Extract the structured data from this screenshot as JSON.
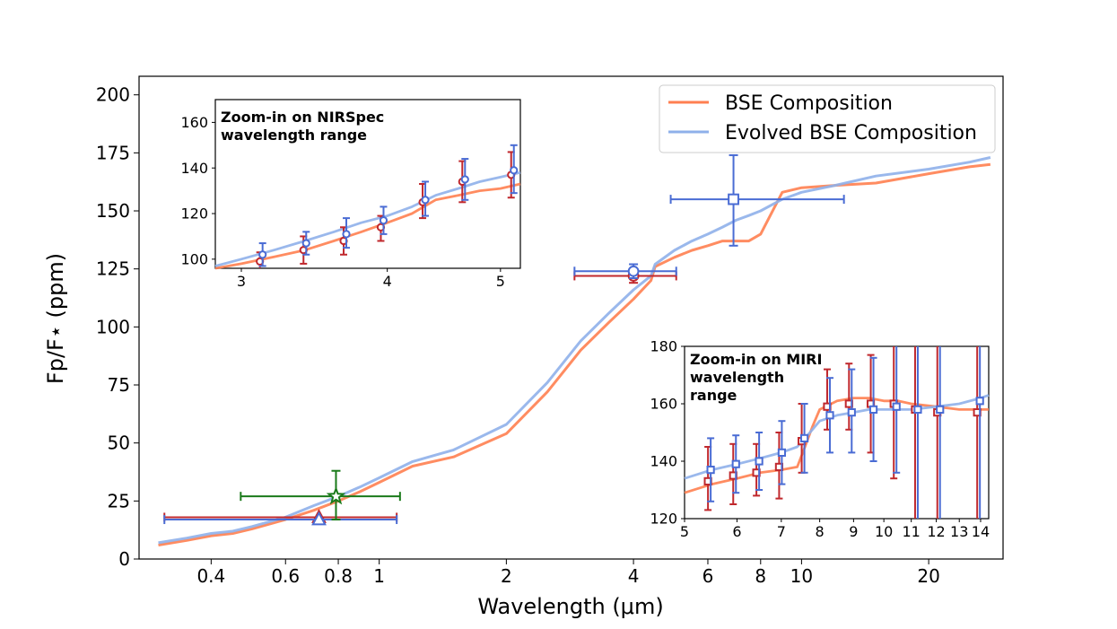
{
  "chart_data": [
    {
      "type": "line",
      "title": "",
      "xlabel": "Wavelength (μm)",
      "ylabel": "Fp/F⋆ (ppm)",
      "xscale": "log",
      "xlim": [
        0.27,
        30
      ],
      "ylim": [
        0,
        208
      ],
      "xticks": [
        0.4,
        0.6,
        0.8,
        1,
        2,
        4,
        6,
        8,
        10,
        20
      ],
      "xtick_labels": [
        "0.4",
        "0.6",
        "0.8",
        "1",
        "2",
        "4",
        "6",
        "8",
        "10",
        "20"
      ],
      "yticks": [
        0,
        25,
        50,
        75,
        100,
        125,
        150,
        175,
        200
      ],
      "ytick_labels": [
        "0",
        "25",
        "50",
        "75",
        "100",
        "125",
        "150",
        "175",
        "200"
      ],
      "legend": {
        "position": "top-right",
        "entries": [
          {
            "label": "BSE Composition",
            "color": "#ff7f50"
          },
          {
            "label": "Evolved BSE Composition",
            "color": "#8fb0ea"
          }
        ]
      },
      "series": [
        {
          "name": "BSE Composition",
          "color": "#ff7f50",
          "x": [
            0.3,
            0.35,
            0.4,
            0.45,
            0.5,
            0.6,
            0.7,
            0.8,
            0.9,
            1.0,
            1.2,
            1.5,
            2.0,
            2.5,
            3.0,
            3.5,
            4.0,
            4.4,
            4.5,
            5.0,
            5.5,
            6.0,
            6.5,
            7.0,
            7.5,
            8.0,
            9.0,
            10.0,
            12.0,
            15.0,
            20.0,
            25.0,
            28.0
          ],
          "y": [
            6,
            8,
            10,
            11,
            13,
            17,
            21,
            25,
            29,
            33,
            40,
            44,
            54,
            72,
            90,
            102,
            112,
            120,
            126,
            130,
            133,
            135,
            137,
            137,
            137,
            140,
            158,
            160,
            161,
            162,
            166,
            169,
            170
          ]
        },
        {
          "name": "Evolved BSE Composition",
          "color": "#8fb0ea",
          "x": [
            0.3,
            0.35,
            0.4,
            0.45,
            0.5,
            0.6,
            0.7,
            0.8,
            0.9,
            1.0,
            1.2,
            1.5,
            2.0,
            2.5,
            3.0,
            3.5,
            4.0,
            4.4,
            4.5,
            5.0,
            5.5,
            6.0,
            6.5,
            7.0,
            7.5,
            8.0,
            9.0,
            10.0,
            12.0,
            15.0,
            20.0,
            25.0,
            28.0
          ],
          "y": [
            7,
            9,
            11,
            12,
            14,
            18,
            23,
            27,
            31,
            35,
            42,
            47,
            58,
            76,
            94,
            106,
            116,
            122,
            127,
            133,
            137,
            140,
            143,
            146,
            148,
            150,
            155,
            158,
            161,
            165,
            168,
            171,
            173
          ]
        }
      ],
      "datapoints": [
        {
          "name": "red-circle",
          "color": "#c0282d",
          "marker": "circle",
          "x": 4.0,
          "y": 122,
          "xerr": [
            2.9,
            5.05
          ],
          "yerr": [
            119,
            124
          ]
        },
        {
          "name": "blue-circle",
          "color": "#4a6cd4",
          "marker": "circle",
          "x": 4.0,
          "y": 124,
          "xerr": [
            2.9,
            5.05
          ],
          "yerr": [
            121,
            127
          ]
        },
        {
          "name": "blue-square",
          "color": "#4a6cd4",
          "marker": "square",
          "x": 6.9,
          "y": 155,
          "xerr": [
            4.9,
            12.6
          ],
          "yerr": [
            135,
            174
          ]
        },
        {
          "name": "red-triangle",
          "color": "#c0282d",
          "marker": "triangle",
          "x": 0.72,
          "y": 18,
          "xerr": [
            0.31,
            1.1
          ],
          "yerr": [
            18,
            18
          ]
        },
        {
          "name": "blue-triangle",
          "color": "#4a6cd4",
          "marker": "triangle",
          "x": 0.72,
          "y": 17,
          "xerr": [
            0.31,
            1.1
          ],
          "yerr": [
            17,
            17
          ]
        },
        {
          "name": "green-star",
          "color": "#1a7a1a",
          "marker": "star",
          "x": 0.79,
          "y": 27,
          "xerr": [
            0.47,
            1.12
          ],
          "yerr": [
            17,
            38
          ]
        }
      ]
    },
    {
      "type": "line",
      "title": "Zoom-in on NIRSpec wavelength range",
      "title_lines": [
        "Zoom-in on NIRSpec",
        "wavelength range"
      ],
      "xscale": "log",
      "xlim": [
        2.85,
        5.2
      ],
      "ylim": [
        96,
        170
      ],
      "xticks": [
        3,
        4,
        5
      ],
      "xtick_labels": [
        "3",
        "4",
        "5"
      ],
      "yticks": [
        100,
        120,
        140,
        160
      ],
      "ytick_labels": [
        "100",
        "120",
        "140",
        "160"
      ],
      "series": [
        {
          "name": "BSE Composition",
          "color": "#ff7f50",
          "x": [
            2.85,
            3.0,
            3.2,
            3.4,
            3.6,
            3.8,
            4.0,
            4.2,
            4.4,
            4.6,
            4.8,
            5.0,
            5.2
          ],
          "y": [
            96,
            98,
            101,
            104,
            108,
            112,
            116,
            120,
            126,
            128,
            130,
            131,
            133
          ]
        },
        {
          "name": "Evolved BSE Composition",
          "color": "#8fb0ea",
          "x": [
            2.85,
            3.0,
            3.2,
            3.4,
            3.6,
            3.8,
            4.0,
            4.2,
            4.4,
            4.6,
            4.8,
            5.0,
            5.2
          ],
          "y": [
            97,
            100,
            104,
            108,
            112,
            116,
            119,
            123,
            128,
            131,
            134,
            136,
            138
          ]
        }
      ],
      "datapoints": [
        {
          "name": "red",
          "color": "#c0282d",
          "marker": "circle",
          "x": [
            3.12,
            3.4,
            3.68,
            3.96,
            4.3,
            4.65,
            5.12
          ],
          "y": [
            99,
            104,
            108,
            114,
            125,
            134,
            137
          ],
          "yerr_lo": [
            96,
            98,
            102,
            108,
            118,
            125,
            127
          ],
          "yerr_hi": [
            103,
            110,
            114,
            119,
            133,
            143,
            147
          ]
        },
        {
          "name": "blue",
          "color": "#4a6cd4",
          "marker": "circle",
          "x": [
            3.12,
            3.4,
            3.68,
            3.96,
            4.3,
            4.65,
            5.12
          ],
          "y": [
            102,
            107,
            111,
            117,
            126,
            135,
            139
          ],
          "yerr_lo": [
            97,
            102,
            105,
            111,
            119,
            126,
            129
          ],
          "yerr_hi": [
            107,
            112,
            118,
            123,
            134,
            144,
            150
          ]
        }
      ]
    },
    {
      "type": "line",
      "title": "Zoom-in on MIRI wavelength range",
      "title_lines": [
        "Zoom-in on MIRI",
        "wavelength",
        "range"
      ],
      "xscale": "log",
      "xlim": [
        5,
        14.4
      ],
      "ylim": [
        120,
        180
      ],
      "xticks": [
        5,
        6,
        7,
        8,
        9,
        10,
        11,
        12,
        13,
        14
      ],
      "xtick_labels": [
        "5",
        "6",
        "7",
        "8",
        "9",
        "10",
        "11",
        "12",
        "13",
        "14"
      ],
      "yticks": [
        120,
        140,
        160,
        180
      ],
      "ytick_labels": [
        "120",
        "140",
        "160",
        "180"
      ],
      "series": [
        {
          "name": "BSE Composition",
          "color": "#ff7f50",
          "x": [
            5.0,
            5.5,
            6.0,
            6.5,
            7.0,
            7.4,
            7.6,
            7.8,
            8.0,
            8.5,
            9.0,
            9.5,
            10.0,
            10.5,
            11.0,
            12.0,
            13.0,
            14.0,
            14.4
          ],
          "y": [
            129,
            132,
            134,
            136,
            137,
            138,
            145,
            152,
            158,
            161,
            162,
            162,
            161,
            161,
            160,
            159,
            158,
            158,
            158
          ]
        },
        {
          "name": "Evolved BSE Composition",
          "color": "#8fb0ea",
          "x": [
            5.0,
            5.5,
            6.0,
            6.5,
            7.0,
            7.4,
            7.6,
            7.8,
            8.0,
            8.5,
            9.0,
            9.5,
            10.0,
            10.5,
            11.0,
            12.0,
            13.0,
            14.0,
            14.4
          ],
          "y": [
            134,
            137,
            139,
            141,
            143,
            145,
            148,
            151,
            154,
            156,
            157,
            158,
            158,
            158,
            158,
            159,
            160,
            162,
            163
          ]
        }
      ],
      "datapoints": [
        {
          "name": "red",
          "color": "#c0282d",
          "marker": "square",
          "x": [
            5.45,
            5.95,
            6.45,
            6.98,
            7.55,
            8.25,
            8.9,
            9.6,
            10.4,
            11.2,
            12.1,
            13.9
          ],
          "y": [
            133,
            135,
            136,
            138,
            147,
            159,
            160,
            160,
            160,
            158,
            157,
            157
          ],
          "yerr_lo": [
            123,
            125,
            128,
            127,
            136,
            151,
            151,
            143,
            134,
            120,
            120,
            120
          ],
          "yerr_hi": [
            145,
            146,
            146,
            150,
            160,
            172,
            174,
            177,
            180,
            180,
            180,
            180
          ]
        },
        {
          "name": "blue",
          "color": "#4a6cd4",
          "marker": "square",
          "x": [
            5.45,
            5.95,
            6.45,
            6.98,
            7.55,
            8.25,
            8.9,
            9.6,
            10.4,
            11.2,
            12.1,
            13.9
          ],
          "y": [
            137,
            139,
            140,
            143,
            148,
            156,
            157,
            158,
            159,
            158,
            158,
            161
          ],
          "yerr_lo": [
            126,
            129,
            130,
            132,
            136,
            143,
            143,
            140,
            136,
            120,
            120,
            120
          ],
          "yerr_hi": [
            148,
            149,
            150,
            154,
            160,
            169,
            172,
            176,
            180,
            180,
            180,
            180
          ]
        }
      ]
    }
  ]
}
